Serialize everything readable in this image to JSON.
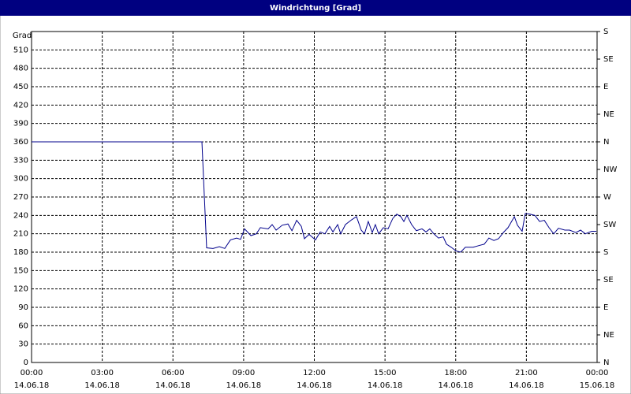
{
  "chart_data": {
    "type": "line",
    "title": "Windrichtung [Grad]",
    "ylabel": "Grad",
    "x": [
      0,
      7.23,
      7.43,
      7.7,
      7.97,
      8.2,
      8.44,
      8.7,
      8.87,
      9.04,
      9.31,
      9.54,
      9.71,
      10.04,
      10.21,
      10.38,
      10.64,
      10.88,
      11.05,
      11.25,
      11.45,
      11.58,
      11.78,
      12.05,
      12.25,
      12.45,
      12.65,
      12.79,
      12.99,
      13.12,
      13.32,
      13.59,
      13.79,
      13.99,
      14.13,
      14.29,
      14.46,
      14.59,
      14.73,
      14.93,
      15.13,
      15.33,
      15.5,
      15.67,
      15.8,
      15.93,
      16.13,
      16.33,
      16.57,
      16.74,
      16.9,
      17.07,
      17.27,
      17.47,
      17.61,
      17.81,
      18.01,
      18.21,
      18.41,
      18.74,
      19.01,
      19.21,
      19.41,
      19.62,
      19.82,
      20.02,
      20.22,
      20.49,
      20.62,
      20.82,
      20.95,
      21.15,
      21.36,
      21.56,
      21.76,
      21.96,
      22.16,
      22.36,
      22.63,
      22.83,
      23.1,
      23.3,
      23.5,
      23.77,
      23.97
    ],
    "series": [
      {
        "name": "Windrichtung",
        "color": "#00008b",
        "values": [
          360,
          360,
          187,
          186,
          189,
          186,
          200,
          203,
          201,
          218,
          207,
          210,
          220,
          218,
          225,
          216,
          224,
          226,
          215,
          232,
          222,
          202,
          209,
          200,
          213,
          210,
          222,
          213,
          225,
          210,
          225,
          233,
          238,
          216,
          210,
          230,
          212,
          225,
          210,
          220,
          218,
          235,
          242,
          238,
          230,
          240,
          225,
          215,
          218,
          213,
          218,
          210,
          203,
          205,
          193,
          188,
          182,
          180,
          188,
          188,
          191,
          193,
          203,
          199,
          202,
          212,
          220,
          238,
          224,
          214,
          243,
          242,
          240,
          230,
          232,
          220,
          210,
          219,
          216,
          216,
          212,
          216,
          210,
          214,
          214
        ]
      }
    ],
    "xlim": [
      0,
      24
    ],
    "xticks": [
      {
        "value": 0,
        "label": "00:00",
        "date": "14.06.18"
      },
      {
        "value": 3,
        "label": "03:00",
        "date": "14.06.18"
      },
      {
        "value": 6,
        "label": "06:00",
        "date": "14.06.18"
      },
      {
        "value": 9,
        "label": "09:00",
        "date": "14.06.18"
      },
      {
        "value": 12,
        "label": "12:00",
        "date": "14.06.18"
      },
      {
        "value": 15,
        "label": "15:00",
        "date": "14.06.18"
      },
      {
        "value": 18,
        "label": "18:00",
        "date": "14.06.18"
      },
      {
        "value": 21,
        "label": "21:00",
        "date": "14.06.18"
      },
      {
        "value": 24,
        "label": "00:00",
        "date": "15.06.18"
      }
    ],
    "ylim": [
      0,
      540
    ],
    "yticks": [
      0,
      30,
      60,
      90,
      120,
      150,
      180,
      210,
      240,
      270,
      300,
      330,
      360,
      390,
      420,
      450,
      480,
      510
    ],
    "y2lim": [
      0,
      540
    ],
    "y2ticks": [
      {
        "value": 0,
        "label": "N"
      },
      {
        "value": 45,
        "label": "NE"
      },
      {
        "value": 90,
        "label": "E"
      },
      {
        "value": 135,
        "label": "SE"
      },
      {
        "value": 180,
        "label": "S"
      },
      {
        "value": 225,
        "label": "SW"
      },
      {
        "value": 270,
        "label": "W"
      },
      {
        "value": 315,
        "label": "NW"
      },
      {
        "value": 360,
        "label": "N"
      },
      {
        "value": 405,
        "label": "NE"
      },
      {
        "value": 450,
        "label": "E"
      },
      {
        "value": 495,
        "label": "SE"
      },
      {
        "value": 540,
        "label": "S"
      }
    ],
    "grid": true
  }
}
